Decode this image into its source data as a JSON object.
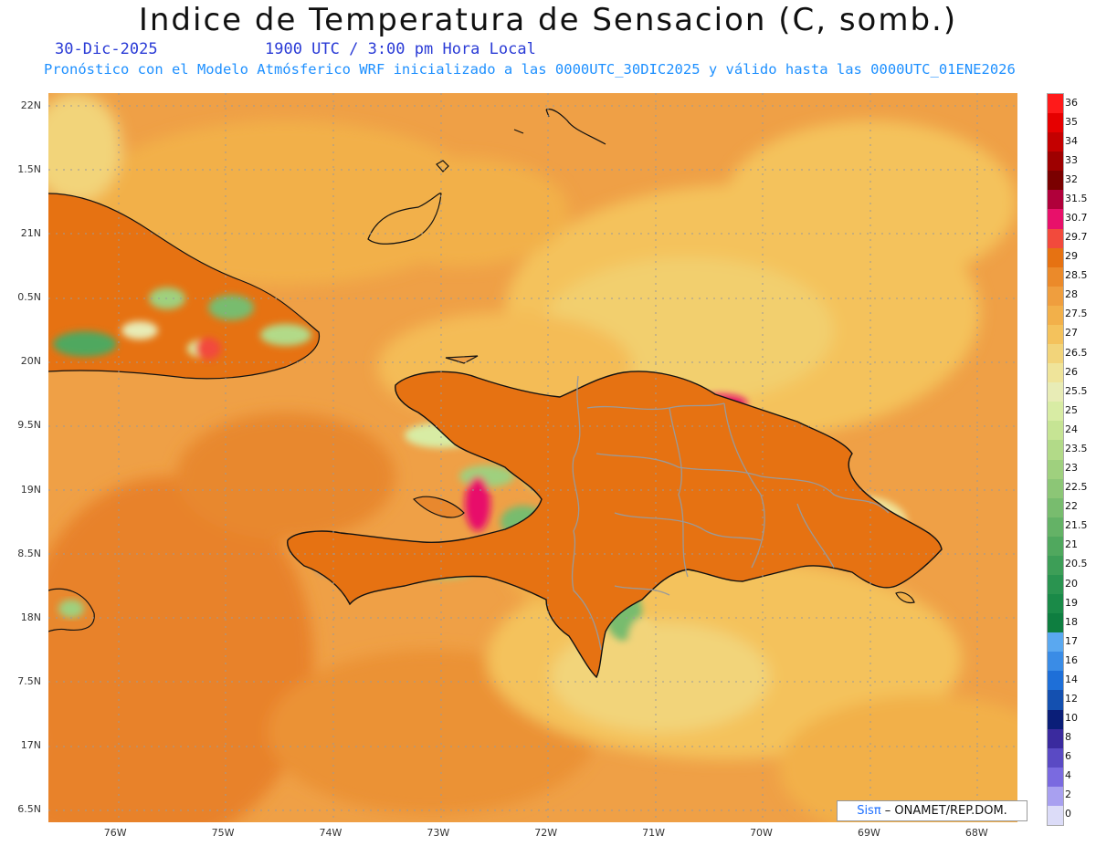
{
  "header": {
    "title": "Indice de Temperatura de Sensacion (C, somb.)",
    "date": "30-Dic-2025",
    "time": "1900 UTC / 3:00 pm Hora Local",
    "forecast": "Pronóstico con el Modelo Atmósferico WRF inicializado a las 0000UTC_30DIC2025 y válido hasta las  0000UTC_01ENE2026"
  },
  "map": {
    "lon_range": [
      -76.6,
      -67.6
    ],
    "lat_range": [
      16.4,
      22.1
    ],
    "lat_ticks": [
      {
        "value": 22,
        "label": "22N"
      },
      {
        "value": 21.5,
        "label": "1.5N"
      },
      {
        "value": 21,
        "label": "21N"
      },
      {
        "value": 20.5,
        "label": "0.5N"
      },
      {
        "value": 20,
        "label": "20N"
      },
      {
        "value": 19.5,
        "label": "9.5N"
      },
      {
        "value": 19,
        "label": "19N"
      },
      {
        "value": 18.5,
        "label": "8.5N"
      },
      {
        "value": 18,
        "label": "18N"
      },
      {
        "value": 17.5,
        "label": "7.5N"
      },
      {
        "value": 17,
        "label": "17N"
      },
      {
        "value": 16.5,
        "label": "6.5N"
      }
    ],
    "lon_ticks": [
      {
        "value": -76,
        "label": "76W"
      },
      {
        "value": -75,
        "label": "75W"
      },
      {
        "value": -74,
        "label": "74W"
      },
      {
        "value": -73,
        "label": "73W"
      },
      {
        "value": -72,
        "label": "72W"
      },
      {
        "value": -71,
        "label": "71W"
      },
      {
        "value": -70,
        "label": "70W"
      },
      {
        "value": -69,
        "label": "69W"
      },
      {
        "value": -68,
        "label": "68W"
      }
    ]
  },
  "colorbar": {
    "levels": [
      {
        "label": "36",
        "color": "#ff1a1a"
      },
      {
        "label": "35",
        "color": "#e60000"
      },
      {
        "label": "34",
        "color": "#c40000"
      },
      {
        "label": "33",
        "color": "#9e0000"
      },
      {
        "label": "32",
        "color": "#7a0000"
      },
      {
        "label": "31.5",
        "color": "#b0003a"
      },
      {
        "label": "30.7",
        "color": "#e8106a"
      },
      {
        "label": "29.7",
        "color": "#f24a3c"
      },
      {
        "label": "29",
        "color": "#e67212"
      },
      {
        "label": "28.5",
        "color": "#eb8a2a"
      },
      {
        "label": "28",
        "color": "#ef9e3e"
      },
      {
        "label": "27.5",
        "color": "#f2b04a"
      },
      {
        "label": "27",
        "color": "#f4c25c"
      },
      {
        "label": "26.5",
        "color": "#f2d47a"
      },
      {
        "label": "26",
        "color": "#efe49a"
      },
      {
        "label": "25.5",
        "color": "#e8ecb6"
      },
      {
        "label": "25",
        "color": "#d8eca4"
      },
      {
        "label": "24",
        "color": "#c6e494"
      },
      {
        "label": "23.5",
        "color": "#b2da88"
      },
      {
        "label": "23",
        "color": "#9fd07e"
      },
      {
        "label": "22.5",
        "color": "#8cc676"
      },
      {
        "label": "22",
        "color": "#78bc6e"
      },
      {
        "label": "21.5",
        "color": "#64b266"
      },
      {
        "label": "21",
        "color": "#50a85e"
      },
      {
        "label": "20.5",
        "color": "#3d9e57"
      },
      {
        "label": "20",
        "color": "#2a9450"
      },
      {
        "label": "19",
        "color": "#1a8a48"
      },
      {
        "label": "18",
        "color": "#0e7e40"
      },
      {
        "label": "17",
        "color": "#5aa8f0"
      },
      {
        "label": "16",
        "color": "#3a8ce6"
      },
      {
        "label": "14",
        "color": "#1e6fd8"
      },
      {
        "label": "12",
        "color": "#1450b0"
      },
      {
        "label": "10",
        "color": "#0a1e78"
      },
      {
        "label": "8",
        "color": "#3a2a9e"
      },
      {
        "label": "6",
        "color": "#5a4ac4"
      },
      {
        "label": "4",
        "color": "#7a6ae0"
      },
      {
        "label": "2",
        "color": "#a8a0f0"
      },
      {
        "label": "0",
        "color": "#dcdcf8"
      }
    ]
  },
  "credit": {
    "brand": "Sisπ",
    "org": " – ONAMET/REP.DOM."
  }
}
